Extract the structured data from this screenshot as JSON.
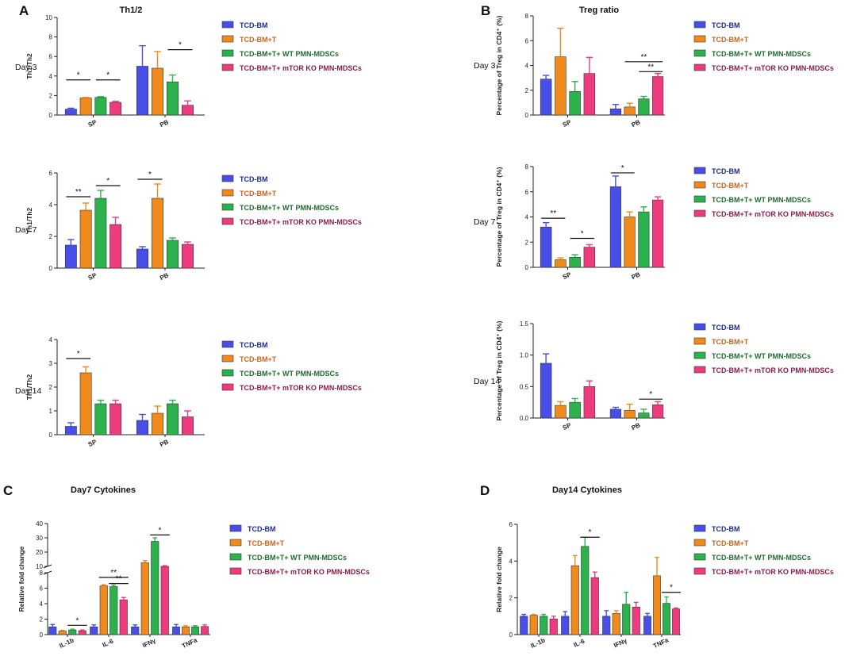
{
  "colors": {
    "TCD-BM": "#4a4ee8",
    "TCD-BM+T": "#f08a1c",
    "TCD-BM+T+ WT PMN-MDSCs": "#2bb24c",
    "TCD-BM+T+ mTOR KO PMN-MDSCs": "#ee3b7e"
  },
  "legend_text_colors": {
    "TCD-BM": "#1e2a8c",
    "TCD-BM+T": "#c8641a",
    "TCD-BM+T+ WT PMN-MDSCs": "#1e6b2e",
    "TCD-BM+T+ mTOR KO PMN-MDSCs": "#8c1c4a"
  },
  "chart_data": [
    {
      "panel": "A",
      "title": "Th1/2",
      "day": "Day 3",
      "type": "bar",
      "categories": [
        "SP",
        "PB"
      ],
      "ylabel": "Th1/Th2",
      "ylim": [
        0,
        10
      ],
      "yticks": [
        "0",
        "2",
        "4",
        "6",
        "8",
        "10"
      ],
      "series": [
        {
          "name": "TCD-BM",
          "values": [
            0.6,
            5.0
          ],
          "errors": [
            0.1,
            2.1
          ]
        },
        {
          "name": "TCD-BM+T",
          "values": [
            1.75,
            4.8
          ],
          "errors": [
            0.05,
            1.7
          ]
        },
        {
          "name": "TCD-BM+T+ WT PMN-MDSCs",
          "values": [
            1.8,
            3.4
          ],
          "errors": [
            0.08,
            0.7
          ]
        },
        {
          "name": "TCD-BM+T+ mTOR KO PMN-MDSCs",
          "values": [
            1.3,
            1.0
          ],
          "errors": [
            0.1,
            0.45
          ]
        }
      ],
      "annotations": [
        {
          "text": "*",
          "from": [
            0,
            0
          ],
          "to": [
            0,
            1
          ],
          "y": 3.6
        },
        {
          "text": "*",
          "from": [
            0,
            2
          ],
          "to": [
            0,
            3
          ],
          "y": 3.6
        },
        {
          "text": "*",
          "from": [
            1,
            2
          ],
          "to": [
            1,
            3
          ],
          "y": 6.7
        }
      ]
    },
    {
      "panel": "",
      "title": "",
      "day": "Day 7",
      "type": "bar",
      "categories": [
        "SP",
        "PB"
      ],
      "ylabel": "Th1/Th2",
      "ylim": [
        0,
        6
      ],
      "yticks": [
        "0",
        "2",
        "4",
        "6"
      ],
      "series": [
        {
          "name": "TCD-BM",
          "values": [
            1.45,
            1.2
          ],
          "errors": [
            0.35,
            0.15
          ]
        },
        {
          "name": "TCD-BM+T",
          "values": [
            3.65,
            4.4
          ],
          "errors": [
            0.45,
            0.9
          ]
        },
        {
          "name": "TCD-BM+T+ WT PMN-MDSCs",
          "values": [
            4.4,
            1.75
          ],
          "errors": [
            0.5,
            0.15
          ]
        },
        {
          "name": "TCD-BM+T+ mTOR KO PMN-MDSCs",
          "values": [
            2.75,
            1.5
          ],
          "errors": [
            0.45,
            0.15
          ]
        }
      ],
      "annotations": [
        {
          "text": "**",
          "from": [
            0,
            0
          ],
          "to": [
            0,
            1
          ],
          "y": 4.5
        },
        {
          "text": "*",
          "from": [
            0,
            2
          ],
          "to": [
            0,
            3
          ],
          "y": 5.2
        },
        {
          "text": "*",
          "from": [
            1,
            0
          ],
          "to": [
            1,
            1
          ],
          "y": 5.6
        }
      ]
    },
    {
      "panel": "",
      "title": "",
      "day": "Day 14",
      "type": "bar",
      "categories": [
        "SP",
        "PB"
      ],
      "ylabel": "Th1/Th2",
      "ylim": [
        0,
        4
      ],
      "yticks": [
        "0",
        "1",
        "2",
        "3",
        "4"
      ],
      "series": [
        {
          "name": "TCD-BM",
          "values": [
            0.35,
            0.6
          ],
          "errors": [
            0.15,
            0.25
          ]
        },
        {
          "name": "TCD-BM+T",
          "values": [
            2.6,
            0.9
          ],
          "errors": [
            0.25,
            0.3
          ]
        },
        {
          "name": "TCD-BM+T+ WT PMN-MDSCs",
          "values": [
            1.3,
            1.3
          ],
          "errors": [
            0.15,
            0.15
          ]
        },
        {
          "name": "TCD-BM+T+ mTOR KO PMN-MDSCs",
          "values": [
            1.3,
            0.75
          ],
          "errors": [
            0.15,
            0.25
          ]
        }
      ],
      "annotations": [
        {
          "text": "*",
          "from": [
            0,
            0
          ],
          "to": [
            0,
            1
          ],
          "y": 3.2
        }
      ]
    },
    {
      "panel": "B",
      "title": "Treg ratio",
      "day": "Day 3",
      "type": "bar",
      "categories": [
        "SP",
        "PB"
      ],
      "ylabel": "Percentage of Treg in CD4⁺ (%)",
      "ylim": [
        0,
        8
      ],
      "yticks": [
        "0",
        "2",
        "4",
        "6",
        "8"
      ],
      "series": [
        {
          "name": "TCD-BM",
          "values": [
            2.9,
            0.5
          ],
          "errors": [
            0.3,
            0.35
          ]
        },
        {
          "name": "TCD-BM+T",
          "values": [
            4.7,
            0.65
          ],
          "errors": [
            2.3,
            0.3
          ]
        },
        {
          "name": "TCD-BM+T+ WT PMN-MDSCs",
          "values": [
            1.9,
            1.3
          ],
          "errors": [
            0.8,
            0.2
          ]
        },
        {
          "name": "TCD-BM+T+ mTOR KO PMN-MDSCs",
          "values": [
            3.35,
            3.1
          ],
          "errors": [
            1.3,
            0.25
          ]
        }
      ],
      "annotations": [
        {
          "text": "**",
          "from": [
            1,
            1
          ],
          "to": [
            1,
            3
          ],
          "y": 4.3
        },
        {
          "text": "**",
          "from": [
            1,
            2
          ],
          "to": [
            1,
            3
          ],
          "y": 3.5
        }
      ]
    },
    {
      "panel": "",
      "title": "",
      "day": "Day 7",
      "type": "bar",
      "categories": [
        "SP",
        "PB"
      ],
      "ylabel": "Percentage of Treg in CD4⁺ (%)",
      "ylim": [
        0,
        8
      ],
      "yticks": [
        "0",
        "2",
        "4",
        "6",
        "8"
      ],
      "series": [
        {
          "name": "TCD-BM",
          "values": [
            3.2,
            6.4
          ],
          "errors": [
            0.35,
            0.85
          ]
        },
        {
          "name": "TCD-BM+T",
          "values": [
            0.6,
            4.0
          ],
          "errors": [
            0.15,
            0.4
          ]
        },
        {
          "name": "TCD-BM+T+ WT PMN-MDSCs",
          "values": [
            0.8,
            4.4
          ],
          "errors": [
            0.2,
            0.4
          ]
        },
        {
          "name": "TCD-BM+T+ mTOR KO PMN-MDSCs",
          "values": [
            1.6,
            5.35
          ],
          "errors": [
            0.2,
            0.25
          ]
        }
      ],
      "annotations": [
        {
          "text": "**",
          "from": [
            0,
            0
          ],
          "to": [
            0,
            1
          ],
          "y": 3.9
        },
        {
          "text": "*",
          "from": [
            0,
            2
          ],
          "to": [
            0,
            3
          ],
          "y": 2.3
        },
        {
          "text": "*",
          "from": [
            1,
            0
          ],
          "to": [
            1,
            1
          ],
          "y": 7.5
        }
      ]
    },
    {
      "panel": "",
      "title": "",
      "day": "Day 14",
      "type": "bar",
      "categories": [
        "SP",
        "PB"
      ],
      "ylabel": "Percentage of Treg in CD4⁺ (%)",
      "ylim": [
        0,
        1.5
      ],
      "yticks": [
        "0.0",
        "0.5",
        "1.0",
        "1.5"
      ],
      "series": [
        {
          "name": "TCD-BM",
          "values": [
            0.87,
            0.14
          ],
          "errors": [
            0.15,
            0.03
          ]
        },
        {
          "name": "TCD-BM+T",
          "values": [
            0.2,
            0.12
          ],
          "errors": [
            0.06,
            0.1
          ]
        },
        {
          "name": "TCD-BM+T+ WT PMN-MDSCs",
          "values": [
            0.25,
            0.08
          ],
          "errors": [
            0.06,
            0.06
          ]
        },
        {
          "name": "TCD-BM+T+ mTOR KO PMN-MDSCs",
          "values": [
            0.5,
            0.21
          ],
          "errors": [
            0.09,
            0.05
          ]
        }
      ],
      "annotations": [
        {
          "text": "*",
          "from": [
            1,
            2
          ],
          "to": [
            1,
            3
          ],
          "y": 0.3
        }
      ]
    },
    {
      "panel": "C",
      "title": "Day7 Cytokines",
      "day": "",
      "type": "bar",
      "categories": [
        "IL-1b",
        "IL-6",
        "IFNγ",
        "TNFa"
      ],
      "ylabel": "Relative fold change",
      "ylim": [
        0,
        40
      ],
      "axis_break": [
        8,
        10
      ],
      "yticks": [
        "0",
        "2",
        "4",
        "6",
        "8",
        "10",
        "20",
        "30",
        "40"
      ],
      "series": [
        {
          "name": "TCD-BM",
          "values": [
            1.0,
            1.0,
            1.0,
            1.0
          ],
          "errors": [
            0.3,
            0.25,
            0.25,
            0.3
          ]
        },
        {
          "name": "TCD-BM+T",
          "values": [
            0.45,
            6.3,
            12.5,
            1.0
          ],
          "errors": [
            0.1,
            0.15,
            1.5,
            0.15
          ]
        },
        {
          "name": "TCD-BM+T+ WT PMN-MDSCs",
          "values": [
            0.6,
            6.2,
            27.5,
            1.0
          ],
          "errors": [
            0.1,
            0.2,
            2.5,
            0.15
          ]
        },
        {
          "name": "TCD-BM+T+ mTOR KO PMN-MDSCs",
          "values": [
            0.5,
            4.5,
            10.0,
            1.05
          ],
          "errors": [
            0.1,
            0.3,
            0.5,
            0.2
          ]
        }
      ],
      "annotations": [
        {
          "text": "*",
          "from": [
            0,
            2
          ],
          "to": [
            0,
            3
          ],
          "y": 1.2
        },
        {
          "text": "**",
          "from": [
            1,
            1
          ],
          "to": [
            1,
            3
          ],
          "y": 7.4
        },
        {
          "text": "**",
          "from": [
            1,
            2
          ],
          "to": [
            1,
            3
          ],
          "y": 6.6
        },
        {
          "text": "*",
          "from": [
            2,
            2
          ],
          "to": [
            2,
            3
          ],
          "y": 32
        }
      ]
    },
    {
      "panel": "D",
      "title": "Day14 Cytokines",
      "day": "",
      "type": "bar",
      "categories": [
        "IL-1b",
        "IL-6",
        "IFNγ",
        "TNFa"
      ],
      "ylabel": "Relative fold change",
      "ylim": [
        0,
        6
      ],
      "yticks": [
        "0",
        "2",
        "4",
        "6"
      ],
      "series": [
        {
          "name": "TCD-BM",
          "values": [
            1.0,
            1.0,
            1.0,
            1.0
          ],
          "errors": [
            0.1,
            0.25,
            0.3,
            0.15
          ]
        },
        {
          "name": "TCD-BM+T",
          "values": [
            1.05,
            3.75,
            1.15,
            3.2
          ],
          "errors": [
            0.05,
            0.55,
            0.15,
            1.0
          ]
        },
        {
          "name": "TCD-BM+T+ WT PMN-MDSCs",
          "values": [
            1.0,
            4.8,
            1.65,
            1.7
          ],
          "errors": [
            0.1,
            0.5,
            0.65,
            0.35
          ]
        },
        {
          "name": "TCD-BM+T+ mTOR KO PMN-MDSCs",
          "values": [
            0.85,
            3.1,
            1.5,
            1.4
          ],
          "errors": [
            0.15,
            0.3,
            0.25,
            0.05
          ]
        }
      ],
      "annotations": [
        {
          "text": "*",
          "from": [
            1,
            2
          ],
          "to": [
            1,
            3
          ],
          "y": 5.3
        },
        {
          "text": "*",
          "from": [
            3,
            2
          ],
          "to": [
            3,
            3
          ],
          "y": 2.3
        }
      ]
    }
  ]
}
